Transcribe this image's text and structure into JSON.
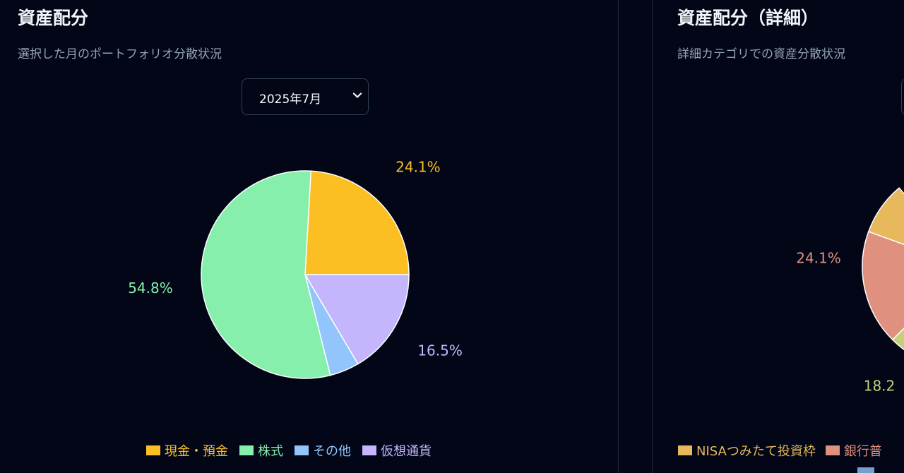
{
  "chart_data": [
    {
      "type": "pie",
      "title": "資産配分",
      "subtitle": "選択した月のポートフォリオ分散状況",
      "selector": {
        "value": "2025年7月"
      },
      "slices": [
        {
          "name": "現金・預金",
          "value": 24.1,
          "label": "24.1%",
          "color": "#fbbf24"
        },
        {
          "name": "仮想通貨",
          "value": 16.5,
          "label": "16.5%",
          "color": "#c4b5fd"
        },
        {
          "name": "その他",
          "value": 4.6,
          "label": "",
          "color": "#93c5fd"
        },
        {
          "name": "株式",
          "value": 54.8,
          "label": "54.8%",
          "color": "#86efac"
        }
      ],
      "legend": {
        "position": "bottom",
        "items": [
          {
            "name": "現金・預金",
            "color": "#fbbf24"
          },
          {
            "name": "株式",
            "color": "#86efac"
          },
          {
            "name": "その他",
            "color": "#93c5fd"
          },
          {
            "name": "仮想通貨",
            "color": "#c4b5fd"
          }
        ]
      }
    },
    {
      "type": "pie",
      "title": "資産配分（詳細）",
      "subtitle": "詳細カテゴリでの資産分散状況",
      "visible_labels": [
        {
          "label": "24.1%",
          "color": "#e0907f"
        },
        {
          "label": "18.2",
          "color": "#c5d17a"
        }
      ],
      "slice_colors": [
        "#e7b85c",
        "#e0907f",
        "#c5d17a"
      ],
      "legend": {
        "position": "bottom",
        "items": [
          {
            "name": "NISAつみたて投資枠",
            "color": "#e7b85c"
          },
          {
            "name": "銀行普",
            "color": "#e0907f"
          }
        ]
      }
    }
  ]
}
